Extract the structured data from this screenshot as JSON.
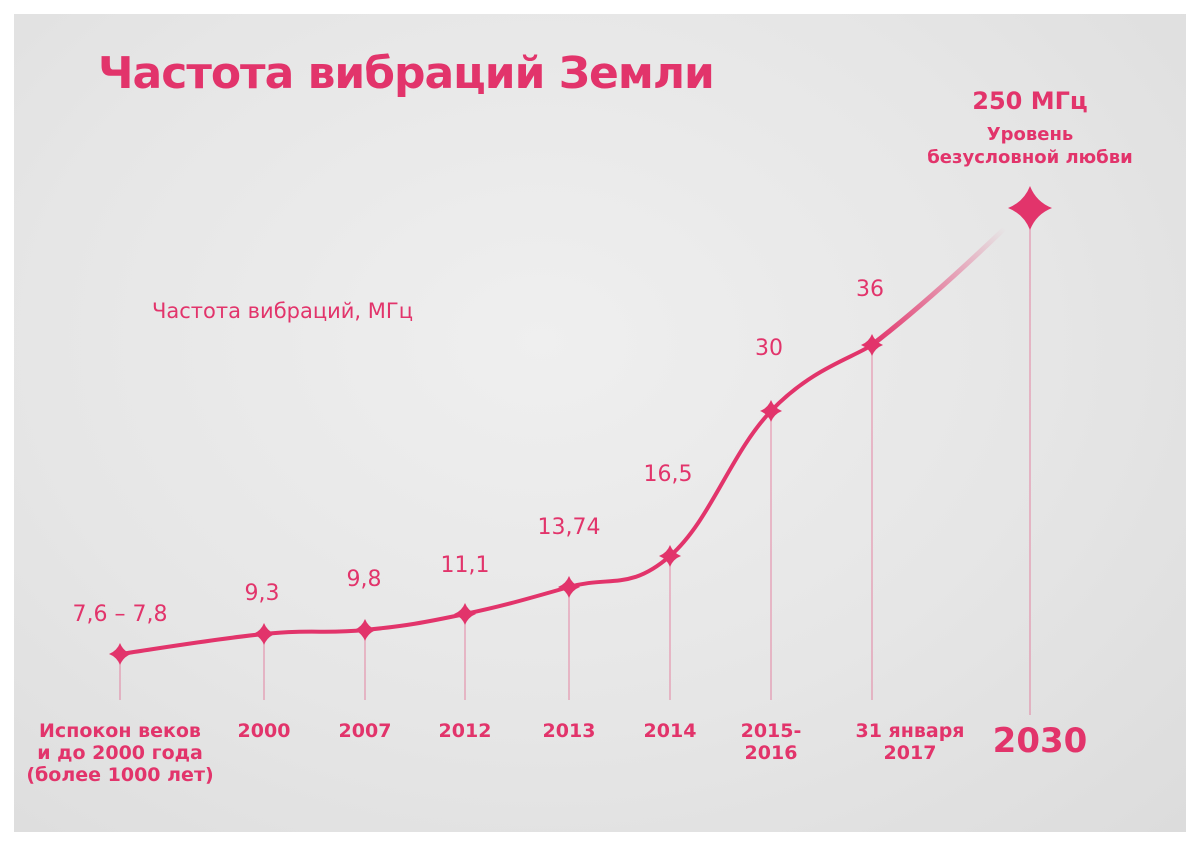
{
  "chart_data": {
    "type": "line",
    "title": "Частота вибраций Земли",
    "ylabel": "Частота вибраций, МГц",
    "categories": [
      [
        "Испокон веков",
        "и до 2000 года",
        "(более 1000 лет)"
      ],
      [
        "2000"
      ],
      [
        "2007"
      ],
      [
        "2012"
      ],
      [
        "2013"
      ],
      [
        "2014"
      ],
      [
        "2015-",
        "2016"
      ],
      [
        "31 января",
        "2017"
      ],
      [
        "2030"
      ]
    ],
    "values": [
      7.7,
      9.3,
      9.8,
      11.1,
      13.74,
      16.5,
      30,
      36,
      250
    ],
    "value_labels": [
      "7,6 – 7,8",
      "9,3",
      "9,8",
      "11,1",
      "13,74",
      "16,5",
      "30",
      "36",
      ""
    ],
    "annotation": {
      "value": "250 МГц",
      "lines": [
        "Уровень",
        "безусловной любви"
      ]
    },
    "accent_color": "#e2346b",
    "grid": false
  }
}
